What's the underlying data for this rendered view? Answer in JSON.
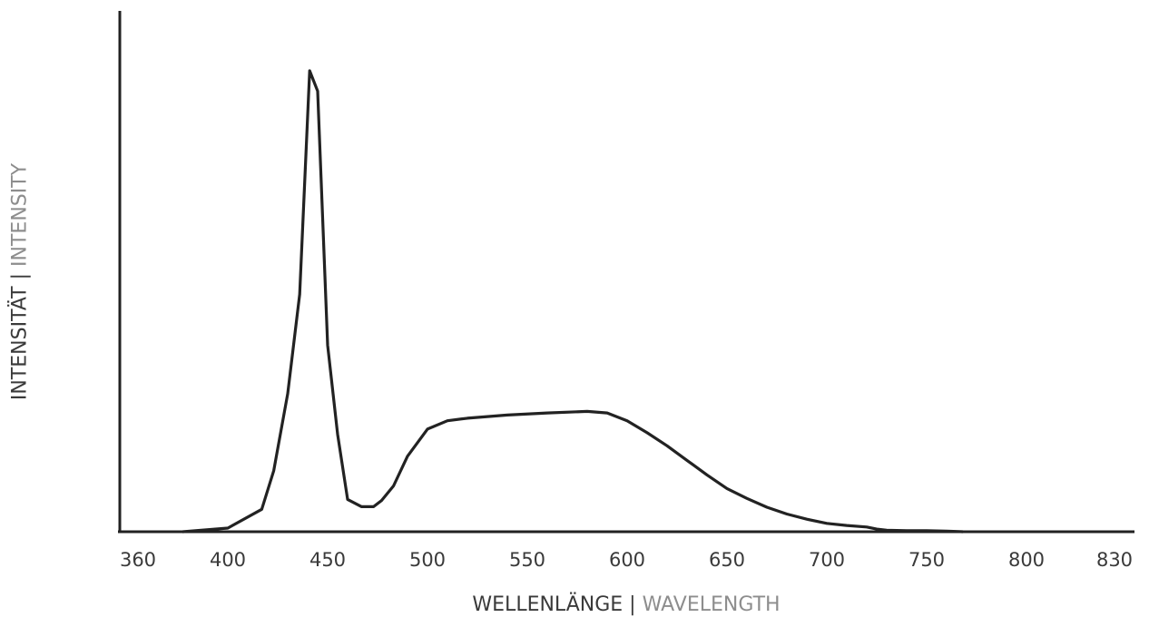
{
  "chart_data": {
    "type": "line",
    "xlabel_primary": "WELLENLÄNGE",
    "xlabel_secondary": "WAVELENGTH",
    "ylabel_primary": "INTENSITÄT",
    "ylabel_secondary": "INTENSITY",
    "separator": "|",
    "xlim": [
      360,
      830
    ],
    "ylim": [
      0,
      100
    ],
    "x_ticks": [
      360,
      400,
      450,
      500,
      550,
      600,
      650,
      700,
      750,
      800,
      830
    ],
    "grid": false,
    "series": [
      {
        "color": "#222222",
        "x": [
          380,
          400,
          417,
          423,
          430,
          436,
          441,
          445,
          450,
          455,
          460,
          467,
          473,
          477,
          483,
          490,
          500,
          510,
          520,
          540,
          560,
          580,
          590,
          600,
          610,
          620,
          630,
          640,
          650,
          660,
          670,
          680,
          690,
          700,
          710,
          720,
          725,
          730,
          740,
          750,
          760,
          765,
          768
        ],
        "y": [
          0,
          0.7,
          4.3,
          11.7,
          26.5,
          45.6,
          88.5,
          84.6,
          35.8,
          18.7,
          6.2,
          4.8,
          4.8,
          6.0,
          8.8,
          14.5,
          19.7,
          21.3,
          21.8,
          22.4,
          22.8,
          23.1,
          22.8,
          21.3,
          19.0,
          16.5,
          13.7,
          10.9,
          8.3,
          6.4,
          4.7,
          3.4,
          2.4,
          1.6,
          1.2,
          0.9,
          0.5,
          0.3,
          0.2,
          0.2,
          0.1,
          0.05,
          0
        ]
      }
    ]
  }
}
